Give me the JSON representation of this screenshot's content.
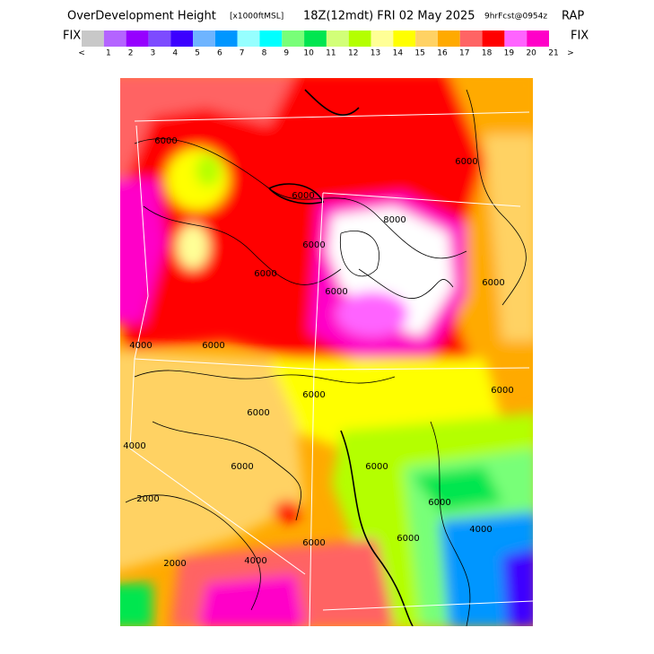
{
  "title": {
    "product": "OverDevelopment Height",
    "units": "[x1000ftMSL]",
    "valid": "18Z(12mdt) FRI 02 May 2025",
    "forecast": "9hrFcst@0954z",
    "model": "RAP"
  },
  "colorbar": {
    "left_label": "FIX",
    "right_label": "FIX",
    "colors": [
      "#c8c8c8",
      "#b464ff",
      "#9600ff",
      "#7d4bff",
      "#3c00ff",
      "#6eb4ff",
      "#0096ff",
      "#96ffff",
      "#00ffff",
      "#78ff78",
      "#00e650",
      "#d2ff78",
      "#b4ff00",
      "#ffff96",
      "#ffff00",
      "#ffd264",
      "#ffaa00",
      "#ff6464",
      "#ff0000",
      "#ff64ff",
      "#ff00c8"
    ],
    "labels": [
      "<",
      "1",
      "2",
      "3",
      "4",
      "5",
      "6",
      "7",
      "8",
      "9",
      "10",
      "11",
      "12",
      "13",
      "14",
      "15",
      "16",
      "17",
      "18",
      "19",
      "20",
      "21",
      ">"
    ]
  },
  "contour_labels": [
    "6000",
    "6000",
    "6000",
    "6000",
    "6000",
    "4000",
    "6000",
    "6000",
    "6000",
    "4000",
    "2000",
    "2000",
    "4000",
    "6000",
    "6000",
    "4000",
    "6000",
    "6000",
    "6000",
    "8000",
    "6000",
    "6000",
    "6000"
  ]
}
